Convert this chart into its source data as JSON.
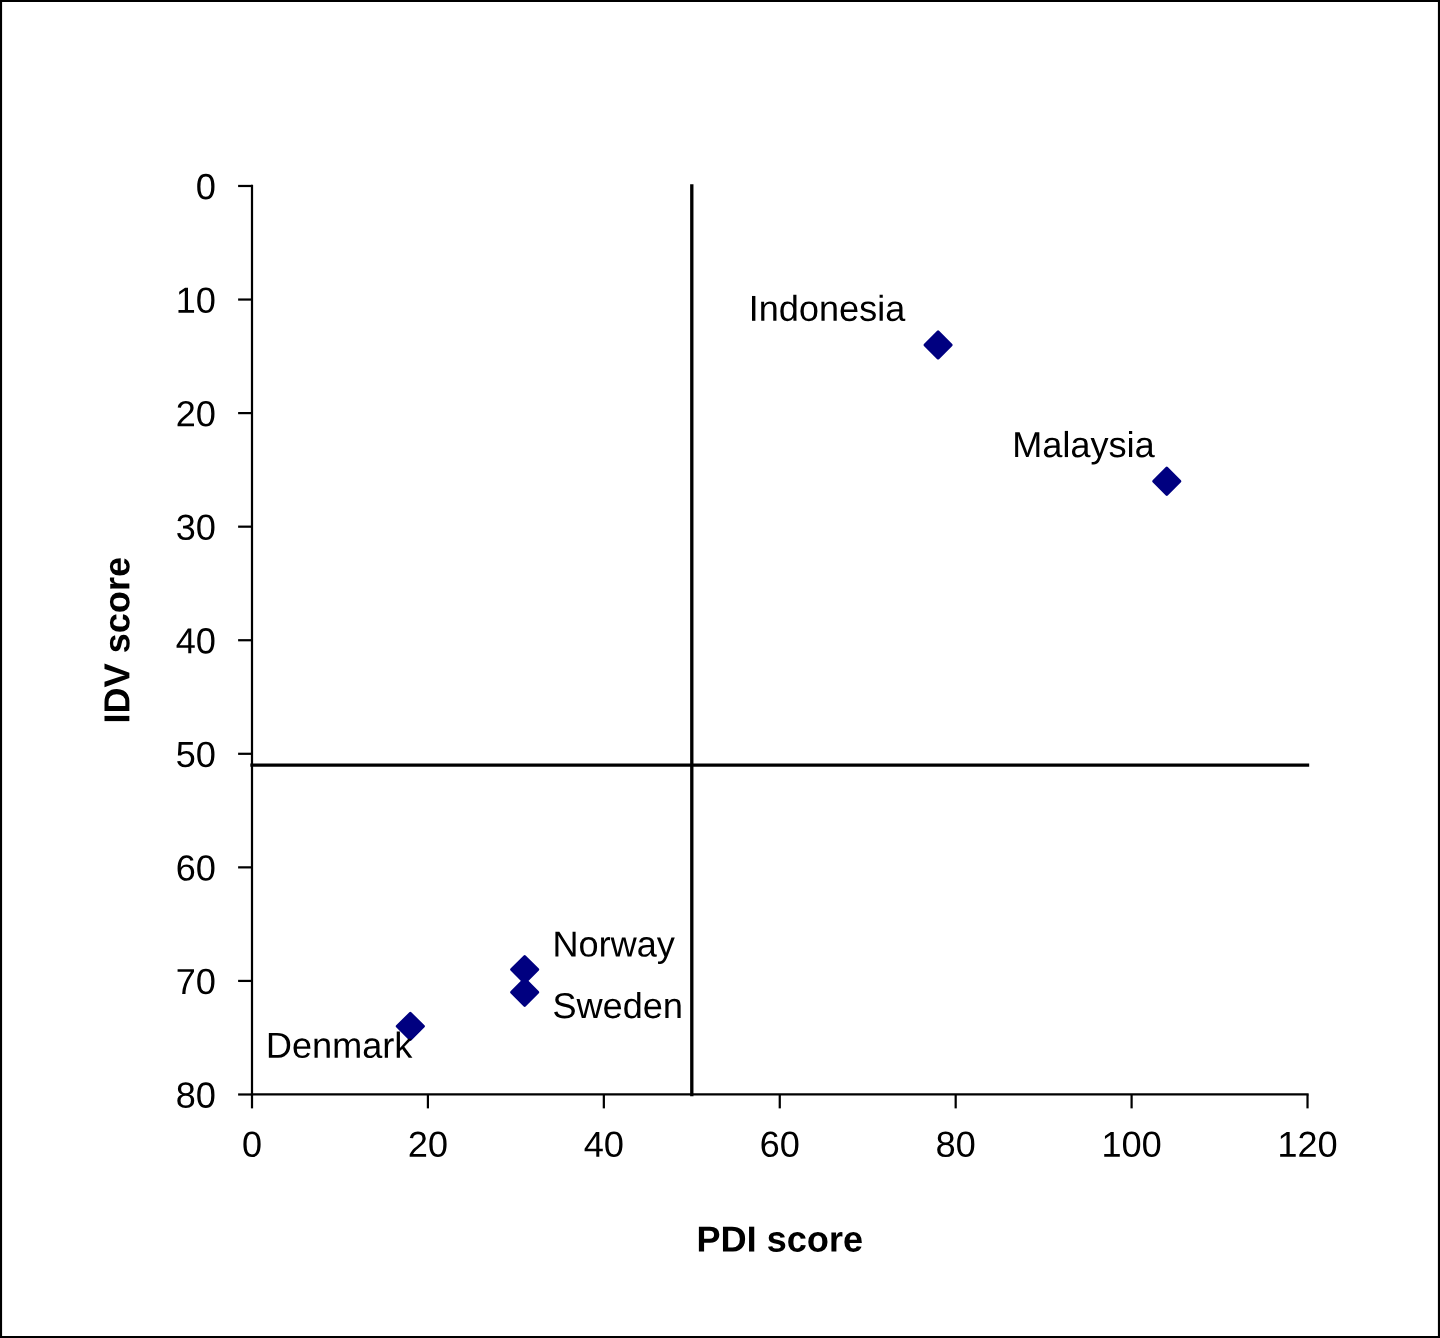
{
  "chart_data": {
    "type": "scatter",
    "xlabel": "PDI score",
    "ylabel": "IDV score",
    "x": [
      78,
      104,
      31,
      31,
      18
    ],
    "values": [
      14,
      26,
      69,
      71,
      74
    ],
    "color": "#000080",
    "marker": "diamond",
    "grid": false,
    "legend": false,
    "xlim": [
      0,
      120
    ],
    "xticks": [
      0,
      20,
      40,
      60,
      80,
      100,
      120
    ],
    "ylim": [
      80,
      0
    ],
    "yticks": [
      0,
      10,
      20,
      30,
      40,
      50,
      60,
      70,
      80
    ],
    "ref_lines": [
      {
        "axis": "x",
        "value": 50,
        "color": "#000000"
      },
      {
        "axis": "y",
        "value": 51,
        "color": "#000000"
      }
    ],
    "annotations": [
      {
        "text": "Indonesia",
        "x": 78,
        "y": 14
      },
      {
        "text": "Malaysia",
        "x": 104,
        "y": 26
      },
      {
        "text": "Norway",
        "x": 31,
        "y": 69
      },
      {
        "text": "Sweden",
        "x": 31,
        "y": 71
      },
      {
        "text": "Denmark",
        "x": 18,
        "y": 74
      }
    ]
  }
}
